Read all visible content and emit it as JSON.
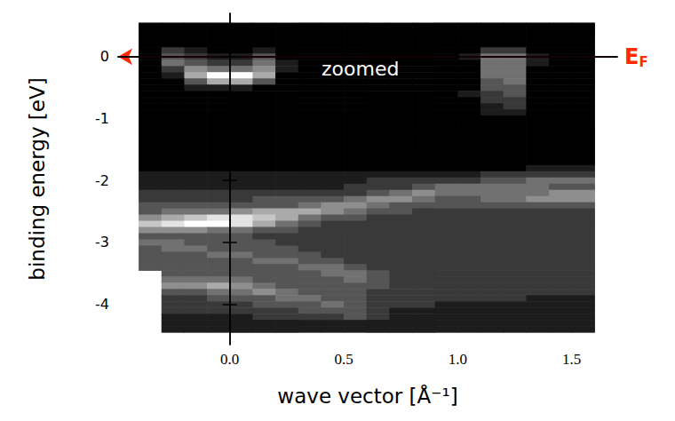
{
  "chart_data": {
    "type": "heatmap",
    "xlabel": "wave vector [Å⁻¹]",
    "ylabel": "binding energy [eV]",
    "xlim": [
      -0.49,
      1.7
    ],
    "ylim": [
      -4.65,
      0.7
    ],
    "xticks": [
      {
        "value": 0,
        "label": "0.0"
      },
      {
        "value": 0.5,
        "label": "0.5"
      },
      {
        "value": 1,
        "label": "1.0"
      },
      {
        "value": 1.5,
        "label": "1.5"
      }
    ],
    "yticks": [
      -4,
      -3,
      -2,
      -1,
      0
    ],
    "grid": false,
    "zlim": [
      0,
      9
    ],
    "annotations": [
      {
        "text": "zoomed"
      }
    ],
    "fermi_level": {
      "value": 0,
      "label": "E",
      "subscript": "F",
      "color": "#ff2a00"
    },
    "x": [
      -0.35,
      -0.25,
      -0.15,
      -0.05,
      0.05,
      0.15,
      0.25,
      0.35,
      0.45,
      0.55,
      0.65,
      0.75,
      0.85,
      0.95,
      1.05,
      1.15,
      1.25,
      1.35,
      1.45,
      1.55
    ],
    "y": [
      0.5,
      0.4,
      0.3,
      0.2,
      0.1,
      0,
      -0.1,
      -0.2,
      -0.3,
      -0.4,
      -0.5,
      -0.6,
      -0.7,
      -0.8,
      -0.9,
      -1,
      -1.1,
      -1.2,
      -1.3,
      -1.4,
      -1.5,
      -1.6,
      -1.7,
      -1.8,
      -1.9,
      -2,
      -2.1,
      -2.2,
      -2.3,
      -2.4,
      -2.5,
      -2.6,
      -2.7,
      -2.8,
      -2.9,
      -3,
      -3.1,
      -3.2,
      -3.3,
      -3.4,
      -3.5,
      -3.6,
      -3.7,
      -3.8,
      -3.9,
      -4,
      -4.1,
      -4.2,
      -4.3,
      -4.4
    ],
    "z": [
      [
        0,
        0,
        0,
        0,
        0,
        0,
        0,
        0,
        0,
        0,
        0,
        0,
        0,
        0,
        0,
        0,
        0,
        0,
        0,
        0
      ],
      [
        0,
        0,
        0,
        0,
        0,
        0,
        0,
        0,
        0,
        0,
        0,
        0,
        0,
        0,
        0,
        0,
        0,
        0,
        0,
        0
      ],
      [
        0,
        0,
        0,
        0,
        0,
        0,
        0,
        0,
        0,
        0,
        0,
        0,
        0,
        0,
        0,
        0,
        0,
        0,
        0,
        0
      ],
      [
        0,
        0,
        0,
        0,
        0,
        0,
        0,
        0,
        0,
        0,
        0,
        0,
        0,
        0,
        0,
        0,
        0,
        0,
        0,
        0
      ],
      [
        0,
        2,
        1,
        0,
        0,
        1,
        0,
        0,
        0,
        0,
        0,
        0,
        0,
        0,
        0,
        2,
        2,
        0,
        0,
        0
      ],
      [
        0,
        3,
        2,
        1,
        1,
        3,
        0,
        0,
        0,
        0,
        0,
        0,
        0,
        0,
        1,
        4,
        4,
        1,
        0,
        0
      ],
      [
        0,
        4,
        3,
        2,
        2,
        4,
        1,
        0,
        0,
        0,
        0,
        0,
        0,
        0,
        0,
        4,
        4,
        1,
        0,
        0
      ],
      [
        0,
        2,
        5,
        4,
        4,
        5,
        1,
        0,
        0,
        0,
        0,
        0,
        0,
        0,
        0,
        4,
        4,
        0,
        0,
        0
      ],
      [
        0,
        1,
        6,
        9,
        9,
        6,
        0,
        0,
        0,
        0,
        0,
        0,
        0,
        0,
        0,
        4,
        4,
        0,
        0,
        0
      ],
      [
        0,
        0,
        3,
        6,
        6,
        3,
        0,
        0,
        0,
        0,
        0,
        0,
        0,
        0,
        0,
        3,
        4,
        0,
        0,
        0
      ],
      [
        0,
        0,
        1,
        1,
        1,
        0,
        0,
        0,
        0,
        0,
        0,
        0,
        0,
        0,
        0,
        3,
        3,
        0,
        0,
        0
      ],
      [
        0,
        0,
        0,
        0,
        0,
        0,
        0,
        0,
        0,
        0,
        0,
        0,
        0,
        0,
        1,
        2,
        3,
        0,
        0,
        0
      ],
      [
        0,
        0,
        0,
        0,
        0,
        0,
        0,
        0,
        0,
        0,
        0,
        0,
        0,
        0,
        0,
        2,
        2,
        0,
        0,
        0
      ],
      [
        0,
        0,
        0,
        0,
        0,
        0,
        0,
        0,
        0,
        0,
        0,
        0,
        0,
        0,
        0,
        1,
        2,
        0,
        0,
        0
      ],
      [
        0,
        0,
        0,
        0,
        0,
        0,
        0,
        0,
        0,
        0,
        0,
        0,
        0,
        0,
        0,
        1,
        1,
        0,
        0,
        0
      ],
      [
        0,
        0,
        0,
        0,
        0,
        0,
        0,
        0,
        0,
        0,
        0,
        0,
        0,
        0,
        0,
        0,
        0,
        0,
        0,
        0
      ],
      [
        0,
        0,
        0,
        0,
        0,
        0,
        0,
        0,
        0,
        0,
        0,
        0,
        0,
        0,
        0,
        0,
        0,
        0,
        0,
        0
      ],
      [
        0,
        0,
        0,
        0,
        0,
        0,
        0,
        0,
        0,
        0,
        0,
        0,
        0,
        0,
        0,
        0,
        0,
        0,
        0,
        0
      ],
      [
        0,
        0,
        0,
        0,
        0,
        0,
        0,
        0,
        0,
        0,
        0,
        0,
        0,
        0,
        0,
        0,
        0,
        0,
        0,
        0
      ],
      [
        0,
        0,
        0,
        0,
        0,
        0,
        0,
        0,
        0,
        0,
        0,
        0,
        0,
        0,
        0,
        0,
        0,
        0,
        0,
        0
      ],
      [
        0,
        0,
        0,
        0,
        0,
        0,
        0,
        0,
        0,
        0,
        0,
        0,
        0,
        0,
        0,
        0,
        0,
        0,
        0,
        0
      ],
      [
        0,
        0,
        0,
        0,
        0,
        0,
        0,
        0,
        0,
        0,
        0,
        0,
        0,
        0,
        0,
        0,
        0,
        0,
        0,
        0
      ],
      [
        0,
        0,
        0,
        0,
        0,
        0,
        0,
        0,
        0,
        0,
        0,
        0,
        0,
        0,
        0,
        0,
        0,
        0,
        0,
        0
      ],
      [
        0,
        0,
        0,
        0,
        0,
        0,
        0,
        0,
        0,
        0,
        0,
        0,
        0,
        0,
        0,
        0,
        0,
        1,
        1,
        1
      ],
      [
        1,
        1,
        1,
        1,
        1,
        1,
        1,
        1,
        1,
        1,
        1,
        1,
        1,
        1,
        1,
        2,
        2,
        2,
        2,
        2
      ],
      [
        1,
        1,
        1,
        1,
        1,
        1,
        1,
        1,
        1,
        1,
        2,
        2,
        2,
        2,
        2,
        3,
        3,
        4,
        4,
        4
      ],
      [
        1,
        1,
        1,
        1,
        1,
        1,
        1,
        1,
        1,
        2,
        2,
        2,
        3,
        4,
        4,
        4,
        4,
        4,
        3,
        3
      ],
      [
        2,
        2,
        2,
        2,
        2,
        2,
        2,
        2,
        2,
        2,
        3,
        4,
        5,
        4,
        4,
        4,
        4,
        4,
        5,
        5
      ],
      [
        2,
        2,
        2,
        2,
        2,
        3,
        3,
        3,
        3,
        4,
        5,
        5,
        4,
        3,
        3,
        4,
        4,
        5,
        5,
        5
      ],
      [
        3,
        3,
        3,
        3,
        3,
        3,
        3,
        4,
        5,
        5,
        4,
        3,
        3,
        3,
        3,
        3,
        3,
        3,
        3,
        3
      ],
      [
        3,
        4,
        4,
        4,
        5,
        6,
        6,
        6,
        5,
        4,
        3,
        3,
        2,
        2,
        2,
        2,
        2,
        2,
        2,
        2
      ],
      [
        5,
        6,
        7,
        8,
        8,
        7,
        6,
        4,
        3,
        3,
        2,
        2,
        2,
        2,
        2,
        2,
        2,
        2,
        2,
        2
      ],
      [
        7,
        8,
        9,
        9,
        8,
        6,
        4,
        3,
        2,
        2,
        2,
        2,
        2,
        2,
        2,
        2,
        2,
        2,
        2,
        2
      ],
      [
        5,
        5,
        5,
        4,
        4,
        3,
        3,
        2,
        2,
        2,
        2,
        2,
        2,
        2,
        2,
        2,
        2,
        2,
        2,
        2
      ],
      [
        3,
        3,
        3,
        3,
        3,
        2,
        2,
        2,
        2,
        2,
        2,
        2,
        2,
        2,
        2,
        2,
        2,
        2,
        2,
        2
      ],
      [
        4,
        4,
        3,
        3,
        3,
        3,
        2,
        2,
        2,
        2,
        2,
        2,
        2,
        2,
        2,
        2,
        2,
        2,
        2,
        2
      ],
      [
        3,
        4,
        4,
        3,
        3,
        3,
        3,
        2,
        2,
        2,
        2,
        2,
        2,
        2,
        2,
        2,
        2,
        2,
        2,
        2
      ],
      [
        3,
        3,
        3,
        4,
        4,
        3,
        3,
        3,
        2,
        2,
        2,
        2,
        2,
        2,
        2,
        2,
        2,
        2,
        2,
        2
      ],
      [
        3,
        3,
        3,
        3,
        3,
        4,
        4,
        3,
        3,
        2,
        2,
        2,
        2,
        2,
        2,
        2,
        2,
        2,
        2,
        2
      ],
      [
        3,
        3,
        3,
        3,
        3,
        3,
        3,
        4,
        4,
        3,
        2,
        2,
        2,
        2,
        2,
        2,
        2,
        2,
        2,
        2
      ],
      [
        null,
        3,
        3,
        3,
        3,
        3,
        3,
        3,
        4,
        4,
        3,
        2,
        2,
        2,
        2,
        2,
        2,
        2,
        2,
        2
      ],
      [
        null,
        4,
        4,
        4,
        4,
        3,
        3,
        3,
        3,
        4,
        3,
        2,
        2,
        2,
        2,
        2,
        2,
        2,
        2,
        2
      ],
      [
        null,
        5,
        5,
        6,
        5,
        4,
        3,
        3,
        3,
        3,
        3,
        2,
        2,
        2,
        2,
        2,
        2,
        2,
        2,
        2
      ],
      [
        null,
        3,
        3,
        4,
        4,
        5,
        4,
        3,
        3,
        3,
        2,
        2,
        2,
        2,
        2,
        2,
        2,
        2,
        2,
        2
      ],
      [
        null,
        2,
        2,
        3,
        3,
        3,
        4,
        4,
        3,
        3,
        2,
        2,
        2,
        2,
        2,
        2,
        2,
        1,
        1,
        1
      ],
      [
        null,
        2,
        2,
        2,
        2,
        3,
        3,
        3,
        4,
        3,
        2,
        2,
        2,
        1,
        1,
        1,
        1,
        1,
        1,
        1
      ],
      [
        null,
        2,
        2,
        2,
        2,
        2,
        2,
        3,
        3,
        3,
        2,
        1,
        1,
        1,
        1,
        1,
        1,
        1,
        1,
        1
      ],
      [
        null,
        1,
        1,
        1,
        1,
        2,
        2,
        2,
        2,
        3,
        2,
        1,
        1,
        1,
        1,
        1,
        1,
        1,
        1,
        1
      ],
      [
        null,
        1,
        1,
        1,
        1,
        1,
        1,
        1,
        1,
        1,
        1,
        1,
        1,
        1,
        1,
        1,
        1,
        1,
        1,
        1
      ],
      [
        null,
        1,
        1,
        1,
        1,
        1,
        1,
        1,
        1,
        1,
        1,
        1,
        1,
        1,
        1,
        1,
        1,
        1,
        1,
        1
      ]
    ]
  }
}
